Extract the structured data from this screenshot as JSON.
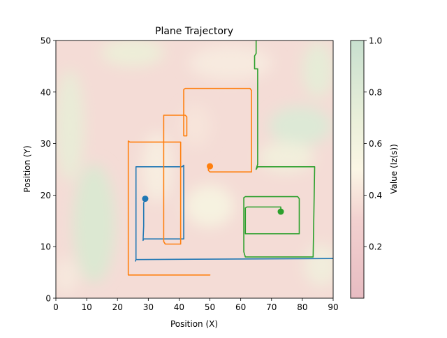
{
  "chart_data": {
    "type": "line",
    "title": "Plane Trajectory",
    "xlabel": "Position (X)",
    "ylabel": "Position (Y)",
    "xlim": [
      0,
      90
    ],
    "ylim": [
      0,
      50
    ],
    "xticks": [
      0,
      10,
      20,
      30,
      40,
      50,
      60,
      70,
      80,
      90
    ],
    "yticks": [
      0,
      10,
      20,
      30,
      40,
      50
    ],
    "grid": false,
    "legend": "none",
    "background": {
      "type": "heatmap",
      "colormap": "pink-to-green (0 = pink, 0.5 = cream, 1 = green)",
      "opacity": 0.25
    },
    "colorbar": {
      "label": "Value (Iz(s))",
      "range": [
        0,
        1
      ],
      "ticks": [
        "0.2",
        "0.4",
        "0.6",
        "0.8",
        "1.0"
      ],
      "tick_values": [
        0.2,
        0.4,
        0.6,
        0.8,
        1.0
      ]
    },
    "series": [
      {
        "color": "#1f77b4",
        "points": [
          [
            90,
            7.7
          ],
          [
            26,
            7.5
          ],
          [
            25.8,
            7.2
          ],
          [
            26,
            7.5
          ],
          [
            26,
            25.5
          ],
          [
            41,
            25.5
          ],
          [
            41.5,
            25.8
          ],
          [
            41.5,
            11.5
          ],
          [
            28.5,
            11.5
          ],
          [
            28.3,
            11.2
          ],
          [
            28.5,
            14
          ],
          [
            28.5,
            18.5
          ],
          [
            29,
            19.3
          ]
        ],
        "end_marker": [
          29,
          19.3
        ]
      },
      {
        "color": "#ff7f0e",
        "points": [
          [
            50,
            4.5
          ],
          [
            23.5,
            4.5
          ],
          [
            23.5,
            30.5
          ],
          [
            24,
            30.3
          ],
          [
            40.5,
            30.3
          ],
          [
            40.5,
            10.5
          ],
          [
            35.5,
            10.5
          ],
          [
            35,
            11
          ],
          [
            35,
            35.5
          ],
          [
            42,
            35.5
          ],
          [
            42.5,
            35.2
          ],
          [
            42.5,
            31.5
          ],
          [
            41.5,
            31.5
          ],
          [
            41.5,
            40.5
          ],
          [
            42,
            40.7
          ],
          [
            63,
            40.7
          ],
          [
            63.5,
            40.3
          ],
          [
            63.5,
            24.5
          ],
          [
            50,
            24.5
          ],
          [
            49.5,
            24.8
          ],
          [
            49.5,
            25.5
          ],
          [
            50,
            25.6
          ]
        ],
        "end_marker": [
          50,
          25.6
        ]
      },
      {
        "color": "#2ca02c",
        "points": [
          [
            65,
            50
          ],
          [
            65,
            47.5
          ],
          [
            64.5,
            47
          ],
          [
            64.5,
            44.5
          ],
          [
            65.5,
            44.5
          ],
          [
            65.5,
            26
          ],
          [
            65,
            25
          ],
          [
            65.5,
            25.5
          ],
          [
            84,
            25.5
          ],
          [
            83.5,
            8
          ],
          [
            61.5,
            8
          ],
          [
            61,
            9
          ],
          [
            61,
            19.5
          ],
          [
            61.5,
            19.7
          ],
          [
            78.5,
            19.7
          ],
          [
            79,
            19.3
          ],
          [
            79,
            12.5
          ],
          [
            61.5,
            12.5
          ],
          [
            61.5,
            17.5
          ],
          [
            62,
            17.7
          ],
          [
            73,
            17.7
          ],
          [
            73,
            16.8
          ]
        ],
        "end_marker": [
          73,
          16.8
        ]
      }
    ]
  }
}
